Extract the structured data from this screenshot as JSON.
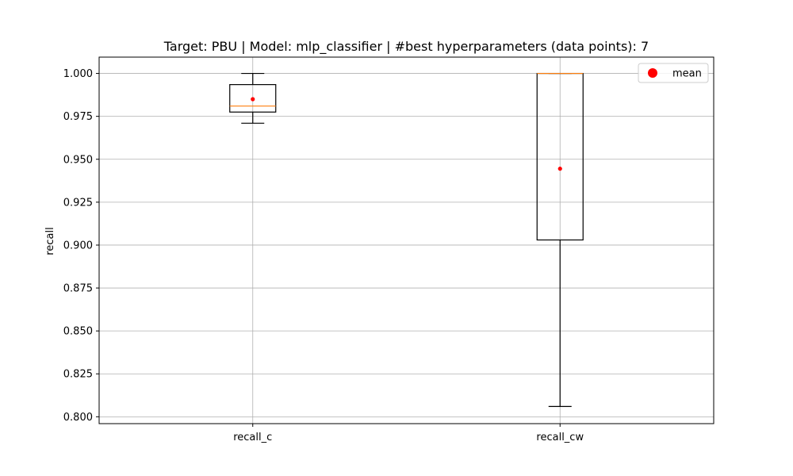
{
  "chart_data": {
    "type": "box",
    "title": "Target: PBU | Model: mlp_classifier | #best hyperparameters (data points): 7",
    "xlabel": "",
    "ylabel": "recall",
    "categories": [
      "recall_c",
      "recall_cw"
    ],
    "ylim": [
      0.796,
      1.0095
    ],
    "yticks": [
      "0.800",
      "0.825",
      "0.850",
      "0.875",
      "0.900",
      "0.925",
      "0.950",
      "0.975",
      "1.000"
    ],
    "grid": true,
    "legend": {
      "position": "top-right",
      "entries": [
        "mean"
      ]
    },
    "boxes": [
      {
        "name": "recall_c",
        "whisker_low": 0.971,
        "q1": 0.9775,
        "median": 0.981,
        "q3": 0.9935,
        "whisker_high": 1.0,
        "mean": 0.985
      },
      {
        "name": "recall_cw",
        "whisker_low": 0.806,
        "q1": 0.903,
        "median": 1.0,
        "q3": 1.0,
        "whisker_high": 1.0,
        "mean": 0.9445
      }
    ],
    "colors": {
      "box": "#000000",
      "median": "#ff7f0e",
      "mean": "#ff0000",
      "grid": "#b0b0b0"
    }
  }
}
